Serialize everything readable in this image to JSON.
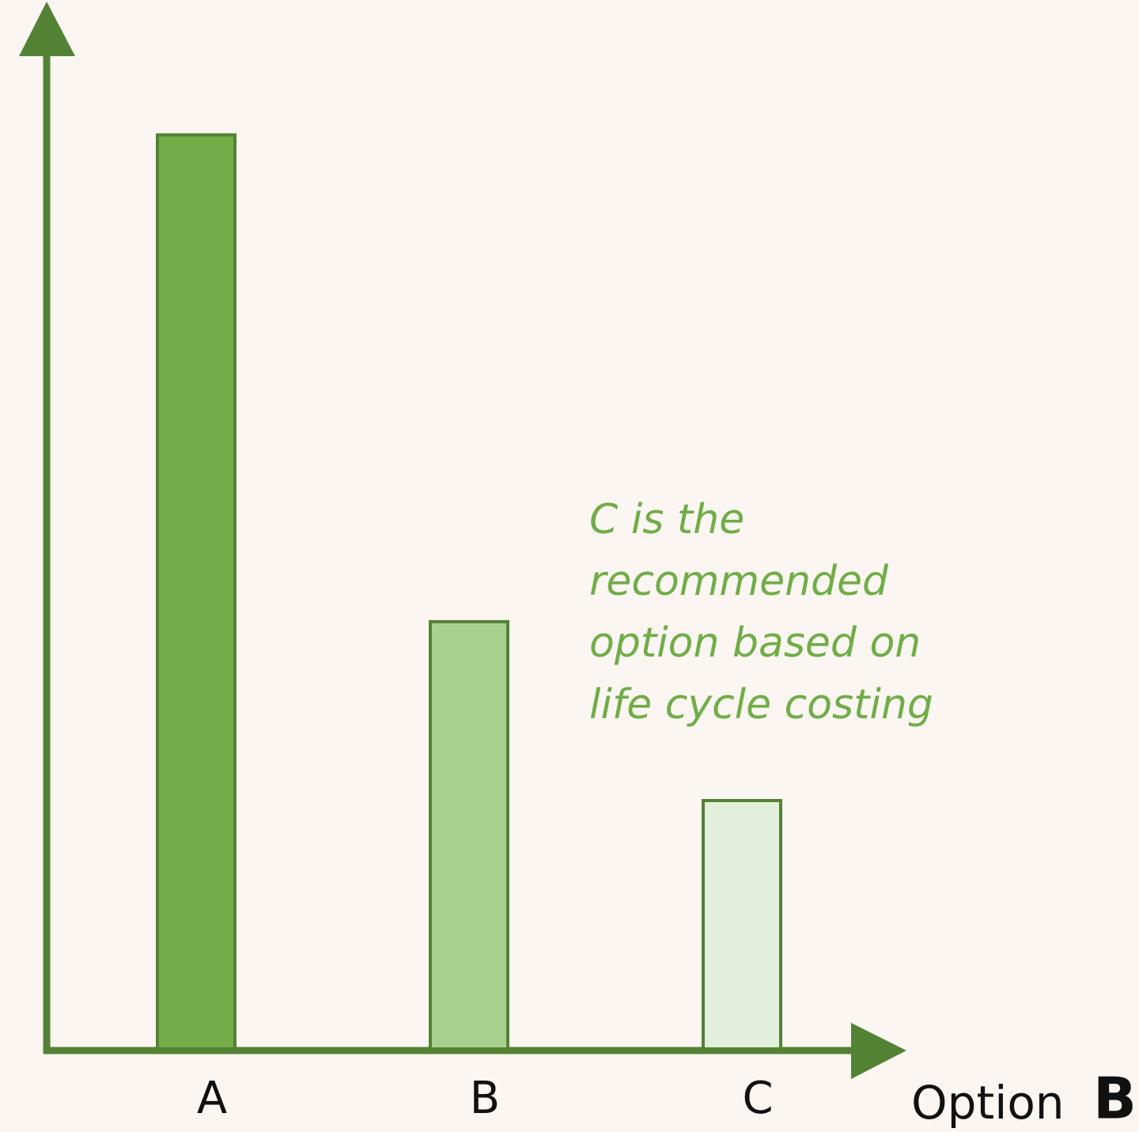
{
  "chart_data": {
    "type": "bar",
    "categories": [
      "A",
      "B",
      "C"
    ],
    "values": [
      92,
      43,
      25
    ],
    "colors": [
      "#74ac48",
      "#a9d18e",
      "#e2efda"
    ],
    "edge_color": "#548235",
    "ylim": [
      0,
      100
    ],
    "x_label": "Option",
    "panel_label": "B",
    "annotation": [
      "C is the",
      "recommended",
      "option based on",
      "life cycle costing"
    ],
    "annotation_color": "#70ad47"
  }
}
